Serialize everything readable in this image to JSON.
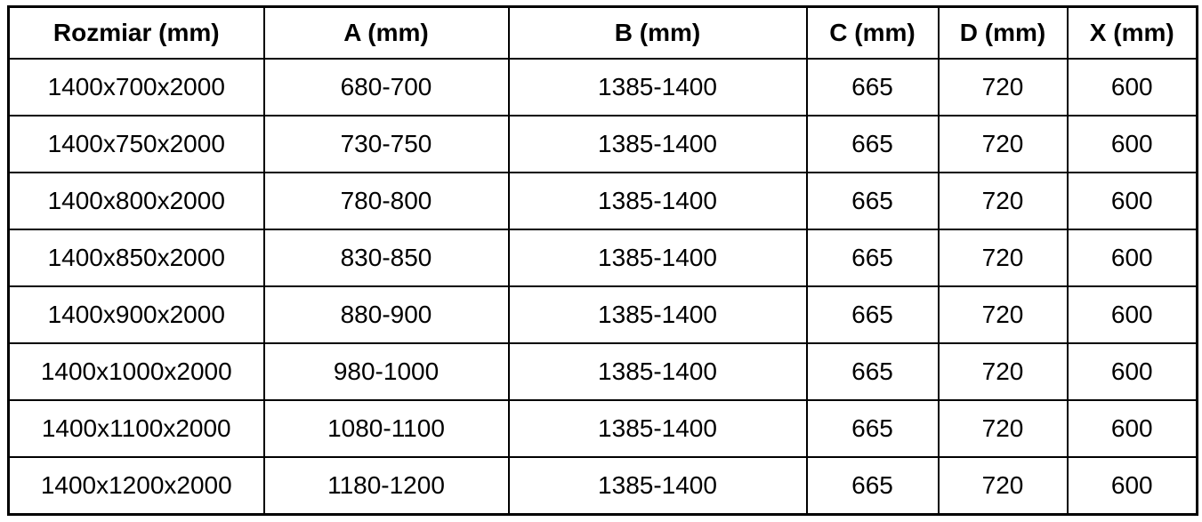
{
  "table": {
    "headers": [
      "Rozmiar (mm)",
      "A (mm)",
      "B (mm)",
      "C (mm)",
      "D (mm)",
      "X (mm)"
    ],
    "rows": [
      [
        "1400x700x2000",
        "680-700",
        "1385-1400",
        "665",
        "720",
        "600"
      ],
      [
        "1400x750x2000",
        "730-750",
        "1385-1400",
        "665",
        "720",
        "600"
      ],
      [
        "1400x800x2000",
        "780-800",
        "1385-1400",
        "665",
        "720",
        "600"
      ],
      [
        "1400x850x2000",
        "830-850",
        "1385-1400",
        "665",
        "720",
        "600"
      ],
      [
        "1400x900x2000",
        "880-900",
        "1385-1400",
        "665",
        "720",
        "600"
      ],
      [
        "1400x1000x2000",
        "980-1000",
        "1385-1400",
        "665",
        "720",
        "600"
      ],
      [
        "1400x1100x2000",
        "1080-1100",
        "1385-1400",
        "665",
        "720",
        "600"
      ],
      [
        "1400x1200x2000",
        "1180-1200",
        "1385-1400",
        "665",
        "720",
        "600"
      ]
    ]
  },
  "colors": {
    "border": "#000000",
    "text": "#000000",
    "background": "#ffffff"
  }
}
